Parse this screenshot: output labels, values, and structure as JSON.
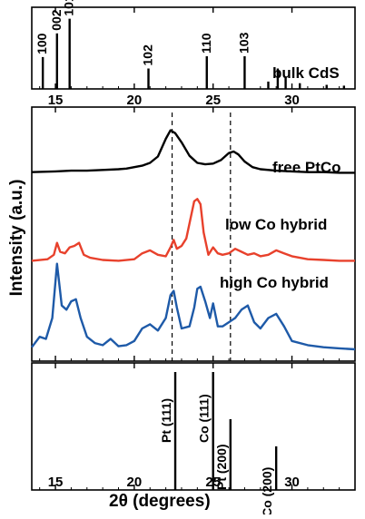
{
  "chart_data": {
    "type": "line",
    "xlabel": "2θ (degrees)",
    "ylabel": "Intensity (a.u.)",
    "xlim": [
      13.5,
      34
    ],
    "x_ticks": [
      15,
      20,
      25,
      30
    ],
    "grid": false,
    "reference_lines": [
      22.4,
      26.1
    ],
    "panels": [
      {
        "id": "bulk-cds",
        "type": "stick",
        "label": "bulk CdS",
        "color": "#000000",
        "peaks": [
          {
            "x": 14.2,
            "h": 0.39,
            "label": "100"
          },
          {
            "x": 15.1,
            "h": 0.68,
            "label": "002"
          },
          {
            "x": 15.9,
            "h": 0.86,
            "label": "101"
          },
          {
            "x": 20.9,
            "h": 0.25,
            "label": "102"
          },
          {
            "x": 24.6,
            "h": 0.4,
            "label": "110"
          },
          {
            "x": 27.0,
            "h": 0.4,
            "label": "103"
          },
          {
            "x": 28.5,
            "h": 0.09,
            "label": ""
          },
          {
            "x": 29.1,
            "h": 0.25,
            "label": ""
          },
          {
            "x": 29.6,
            "h": 0.14,
            "label": ""
          },
          {
            "x": 30.5,
            "h": 0.07,
            "label": ""
          },
          {
            "x": 32.2,
            "h": 0.05,
            "label": ""
          },
          {
            "x": 33.3,
            "h": 0.04,
            "label": ""
          }
        ]
      },
      {
        "id": "hybrids",
        "type": "line",
        "series": [
          {
            "name": "free PtCo",
            "color": "#000000",
            "x": [
              13.5,
              15,
              16,
              17,
              18,
              19,
              19.5,
              20,
              20.5,
              21,
              21.5,
              22,
              22.3,
              22.6,
              23,
              23.5,
              24,
              24.5,
              25,
              25.5,
              26,
              26.3,
              26.6,
              27,
              27.5,
              28,
              29,
              30,
              31,
              32,
              33,
              34
            ],
            "y": [
              0.03,
              0.04,
              0.05,
              0.05,
              0.06,
              0.07,
              0.08,
              0.1,
              0.12,
              0.16,
              0.25,
              0.5,
              0.62,
              0.58,
              0.45,
              0.26,
              0.16,
              0.14,
              0.15,
              0.2,
              0.3,
              0.32,
              0.28,
              0.18,
              0.1,
              0.07,
              0.05,
              0.04,
              0.03,
              0.03,
              0.02,
              0.02
            ]
          },
          {
            "name": "low Co hybrid",
            "color": "#e8412c",
            "x": [
              13.5,
              14.5,
              14.9,
              15.1,
              15.3,
              15.6,
              15.9,
              16.2,
              16.5,
              16.8,
              17.2,
              18,
              19,
              20,
              20.5,
              21,
              21.5,
              22,
              22.3,
              22.5,
              22.7,
              23,
              23.3,
              23.6,
              23.8,
              24,
              24.2,
              24.4,
              24.7,
              25,
              25.3,
              25.6,
              26,
              26.4,
              26.8,
              27.2,
              27.6,
              28,
              28.5,
              29,
              29.5,
              30,
              31,
              32,
              33,
              34
            ],
            "y": [
              0.02,
              0.04,
              0.1,
              0.26,
              0.14,
              0.12,
              0.2,
              0.22,
              0.26,
              0.1,
              0.06,
              0.03,
              0.02,
              0.04,
              0.12,
              0.16,
              0.1,
              0.08,
              0.2,
              0.3,
              0.18,
              0.22,
              0.32,
              0.62,
              0.82,
              0.85,
              0.78,
              0.4,
              0.1,
              0.2,
              0.12,
              0.1,
              0.12,
              0.18,
              0.14,
              0.1,
              0.12,
              0.08,
              0.1,
              0.16,
              0.12,
              0.08,
              0.04,
              0.03,
              0.02,
              0.02
            ]
          },
          {
            "name": "high Co hybrid",
            "color": "#1e5aa8",
            "x": [
              13.5,
              14,
              14.4,
              14.8,
              15.1,
              15.4,
              15.7,
              16,
              16.3,
              16.6,
              17,
              17.5,
              18,
              18.5,
              19,
              19.5,
              20,
              20.5,
              21,
              21.5,
              22,
              22.3,
              22.5,
              22.7,
              23,
              23.5,
              23.8,
              24,
              24.2,
              24.5,
              24.8,
              25,
              25.3,
              25.6,
              26,
              26.4,
              26.8,
              27.2,
              27.6,
              28,
              28.5,
              29,
              29.5,
              30,
              31,
              32,
              33,
              34
            ],
            "y": [
              0.02,
              0.12,
              0.1,
              0.3,
              0.82,
              0.42,
              0.38,
              0.46,
              0.48,
              0.3,
              0.12,
              0.06,
              0.04,
              0.1,
              0.03,
              0.04,
              0.08,
              0.2,
              0.24,
              0.18,
              0.3,
              0.52,
              0.56,
              0.4,
              0.2,
              0.22,
              0.4,
              0.58,
              0.6,
              0.46,
              0.3,
              0.44,
              0.22,
              0.22,
              0.26,
              0.3,
              0.38,
              0.42,
              0.26,
              0.2,
              0.3,
              0.34,
              0.22,
              0.08,
              0.04,
              0.02,
              0.01,
              0.0
            ]
          }
        ]
      },
      {
        "id": "ptco-reference",
        "type": "stick",
        "color": "#000000",
        "peaks": [
          {
            "x": 22.6,
            "h": 1.0,
            "label": "Pt (111)"
          },
          {
            "x": 25.0,
            "h": 1.0,
            "label": "Co (111)"
          },
          {
            "x": 26.1,
            "h": 0.6,
            "label": "Pt (200)"
          },
          {
            "x": 29.0,
            "h": 0.37,
            "label": "Co (200)"
          }
        ]
      }
    ]
  }
}
